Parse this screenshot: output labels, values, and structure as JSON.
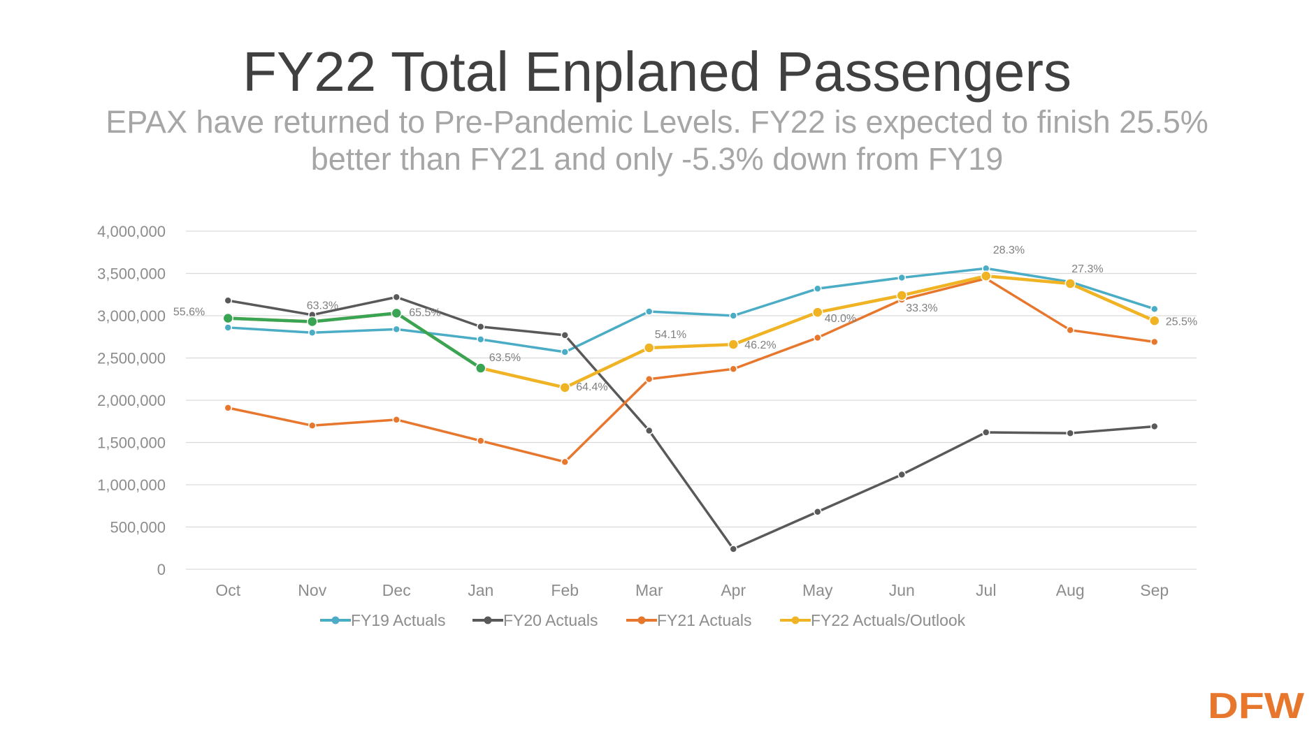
{
  "slide": {
    "title": "FY22 Total Enplaned Passengers",
    "subtitle_line1": "EPAX have returned to Pre-Pandemic Levels. FY22 is expected to finish 25.5%",
    "subtitle_line2": "better than FY21 and only -5.3% down from FY19",
    "logo_text": "DFW"
  },
  "colors": {
    "title": "#404040",
    "subtitle": "#a6a6a6",
    "axis_text": "#8c8c8c",
    "grid": "#d9d9d9",
    "fy22_actuals_highlight": "#3aa455",
    "logo": "#e8772e"
  },
  "chart_data": {
    "type": "line",
    "categories": [
      "Oct",
      "Nov",
      "Dec",
      "Jan",
      "Feb",
      "Mar",
      "Apr",
      "May",
      "Jun",
      "Jul",
      "Aug",
      "Sep"
    ],
    "ylim": [
      0,
      4000000
    ],
    "yticks": [
      0,
      500000,
      1000000,
      1500000,
      2000000,
      2500000,
      3000000,
      3500000,
      4000000
    ],
    "ytick_labels": [
      "0",
      "500,000",
      "1,000,000",
      "1,500,000",
      "2,000,000",
      "2,500,000",
      "3,000,000",
      "3,500,000",
      "4,000,000"
    ],
    "grid": true,
    "legend_position": "bottom",
    "series": [
      {
        "name": "FY19 Actuals",
        "color": "#4bacc6",
        "values": [
          2860000,
          2800000,
          2840000,
          2720000,
          2570000,
          3050000,
          3000000,
          3320000,
          3450000,
          3560000,
          3400000,
          3080000
        ]
      },
      {
        "name": "FY20 Actuals",
        "color": "#595959",
        "values": [
          3180000,
          3010000,
          3220000,
          2870000,
          2770000,
          1640000,
          240000,
          680000,
          1120000,
          1620000,
          1610000,
          1690000
        ]
      },
      {
        "name": "FY21 Actuals",
        "color": "#e8772e",
        "values": [
          1910000,
          1700000,
          1770000,
          1520000,
          1270000,
          2250000,
          2370000,
          2740000,
          3190000,
          3440000,
          2830000,
          2690000
        ]
      },
      {
        "name": "FY22 Actuals/Outlook",
        "color": "#f0b323",
        "values": [
          2970000,
          2930000,
          3030000,
          2380000,
          2150000,
          2620000,
          2660000,
          3040000,
          3240000,
          3470000,
          3380000,
          2940000
        ],
        "highlight_range": [
          0,
          3
        ]
      }
    ],
    "annotations": [
      {
        "category": "Oct",
        "text": "55.6%"
      },
      {
        "category": "Nov",
        "text": "63.3%"
      },
      {
        "category": "Dec",
        "text": "65.5%"
      },
      {
        "category": "Jan",
        "text": "63.5%"
      },
      {
        "category": "Feb",
        "text": "64.4%"
      },
      {
        "category": "Mar",
        "text": "54.1%"
      },
      {
        "category": "Apr",
        "text": "46.2%"
      },
      {
        "category": "May",
        "text": "40.0%"
      },
      {
        "category": "Jun",
        "text": "33.3%"
      },
      {
        "category": "Jul",
        "text": "28.3%"
      },
      {
        "category": "Aug",
        "text": "27.3%"
      },
      {
        "category": "Sep",
        "text": "25.5%"
      }
    ]
  }
}
